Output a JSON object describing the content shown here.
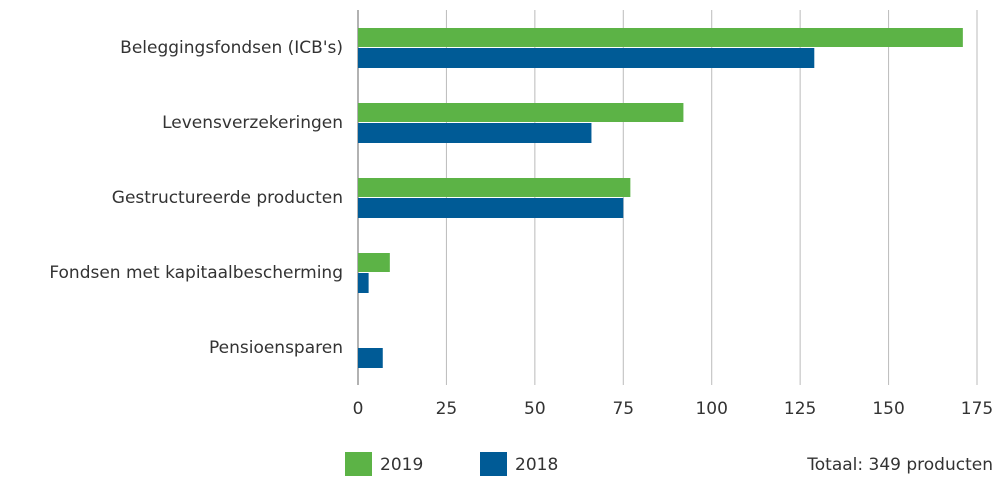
{
  "chart_data": {
    "type": "hbar",
    "categories": [
      "Beleggingsfondsen (ICB's)",
      "Levensverzekeringen",
      "Gestructureerde producten",
      "Fondsen met kapitaalbescherming",
      "Pensioensparen"
    ],
    "series": [
      {
        "name": "2019",
        "color": "#5cb346",
        "values": [
          171,
          92,
          77,
          9,
          0
        ]
      },
      {
        "name": "2018",
        "color": "#005b96",
        "values": [
          129,
          66,
          75,
          3,
          7
        ]
      }
    ],
    "xlim": [
      0,
      175
    ],
    "xticks": [
      0,
      25,
      50,
      75,
      100,
      125,
      150,
      175
    ],
    "grid": true,
    "annotation": "Totaal: 349 producten"
  }
}
